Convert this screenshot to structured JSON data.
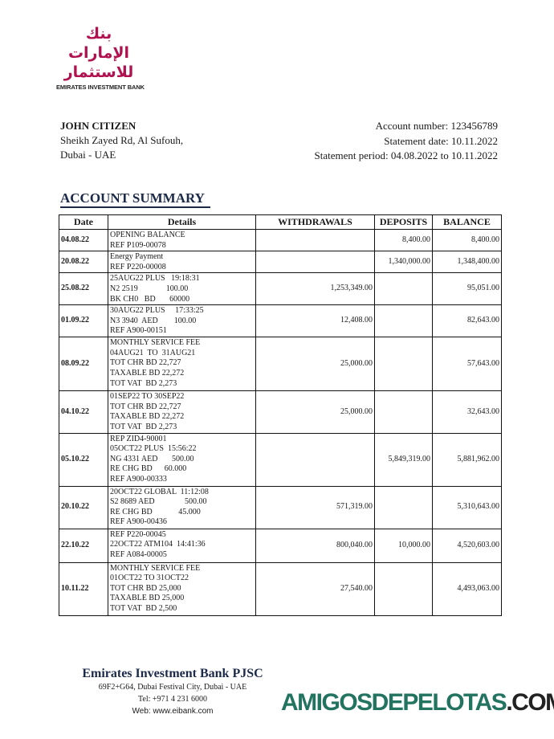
{
  "bank": {
    "name_en": "EMIRATES INVESTMENT BANK",
    "name_ar": "بنك الإمارات للاستثمار",
    "brand_color": "#b0124f"
  },
  "customer": {
    "name": "JOHN CITIZEN",
    "address1": "Sheikh Zayed Rd, Al Sufouh,",
    "address2": "Dubai - UAE"
  },
  "account": {
    "number": "Account number: 123456789",
    "statement_date": "Statement date: 10.11.2022",
    "period": "Statement period: 04.08.2022 to 10.11.2022"
  },
  "summary_title": "ACCOUNT SUMMARY",
  "table": {
    "headers": [
      "Date",
      "Details",
      "WITHDRAWALS",
      "DEPOSITS",
      "BALANCE"
    ],
    "rows": [
      {
        "date": "04.08.22",
        "details": "OPENING BALANCE\nREF P109-00078",
        "withdrawal": "",
        "deposit": "8,400.00",
        "balance": "8,400.00"
      },
      {
        "date": "20.08.22",
        "details": "Energy Payment\nREF P220-00008",
        "withdrawal": "",
        "deposit": "1,340,000.00",
        "balance": "1,348,400.00"
      },
      {
        "date": "25.08.22",
        "details": "25AUG22 PLUS   19:18:31\nN2 2519              100.00\nBK CH0   BD       60000",
        "withdrawal": "1,253,349.00",
        "deposit": "",
        "balance": "95,051.00"
      },
      {
        "date": "01.09.22",
        "details": "30AUG22 PLUS     17:33:25\nN3 3940  AED        100.00\nREF A900-00151",
        "withdrawal": "12,408.00",
        "deposit": "",
        "balance": "82,643.00"
      },
      {
        "date": "08.09.22",
        "details": "MONTHLY SERVICE FEE\n04AUG21  TO  31AUG21\nTOT CHR BD 22,727\nTAXABLE BD 22,272\nTOT VAT  BD 2,273",
        "withdrawal": "25,000.00",
        "deposit": "",
        "balance": "57,643.00"
      },
      {
        "date": "04.10.22",
        "details": "01SEP22 TO 30SEP22\nTOT CHR BD 22,727\nTAXABLE BD 22,272\nTOT VAT  BD 2,273",
        "withdrawal": "25,000.00",
        "deposit": "",
        "balance": "32,643.00"
      },
      {
        "date": "05.10.22",
        "details": "REP ZID4-90001\n05OCT22 PLUS  15:56:22\nNG 4331 AED       500.00\nRE CHG BD      60.000\nREF A900-00333",
        "withdrawal": "",
        "deposit": "5,849,319.00",
        "balance": "5,881,962.00"
      },
      {
        "date": "20.10.22",
        "details": "20OCT22 GLOBAL  11:12:08\nS2 8689 AED               500.00\nRE CHG BD             45.000\nREF A900-00436",
        "withdrawal": "571,319.00",
        "deposit": "",
        "balance": "5,310,643.00"
      },
      {
        "date": "22.10.22",
        "details": "REF P220-00045\n22OCT22 ATM104  14:41:36\nREF A084-00005",
        "withdrawal": "800,040.00",
        "deposit": "10,000.00",
        "balance": "4,520,603.00"
      },
      {
        "date": "10.11.22",
        "details": "MONTHLY SERVICE FEE\n01OCT22 TO 31OCT22\nTOT CHR BD 25,000\nTAXABLE BD 25,000\nTOT VAT  BD 2,500",
        "withdrawal": "27,540.00",
        "deposit": "",
        "balance": "4,493,063.00"
      }
    ]
  },
  "footer": {
    "bank": "Emirates Investment Bank PJSC",
    "address": "69F2+G64, Dubai Festival City, Dubai - UAE",
    "tel": "Tel: +971 4 231 6000",
    "web": "Web: www.eibank.com"
  },
  "watermark": {
    "main": "AMIGOSDEPELOTAS",
    "tld": ".COM",
    "color": "#227360"
  }
}
